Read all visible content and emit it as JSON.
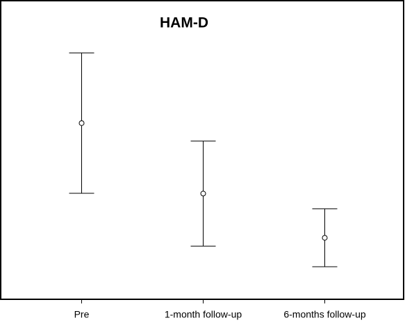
{
  "chart_data": {
    "type": "errorbar",
    "title": "HAM-D",
    "categories": [
      "Pre",
      "1-month follow-up",
      "6-months follow-up"
    ],
    "values": [
      59,
      35.4,
      20.6
    ],
    "errors": [
      23.5,
      17.6,
      9.7
    ],
    "color": "#000000",
    "ylim": [
      0,
      100
    ]
  }
}
